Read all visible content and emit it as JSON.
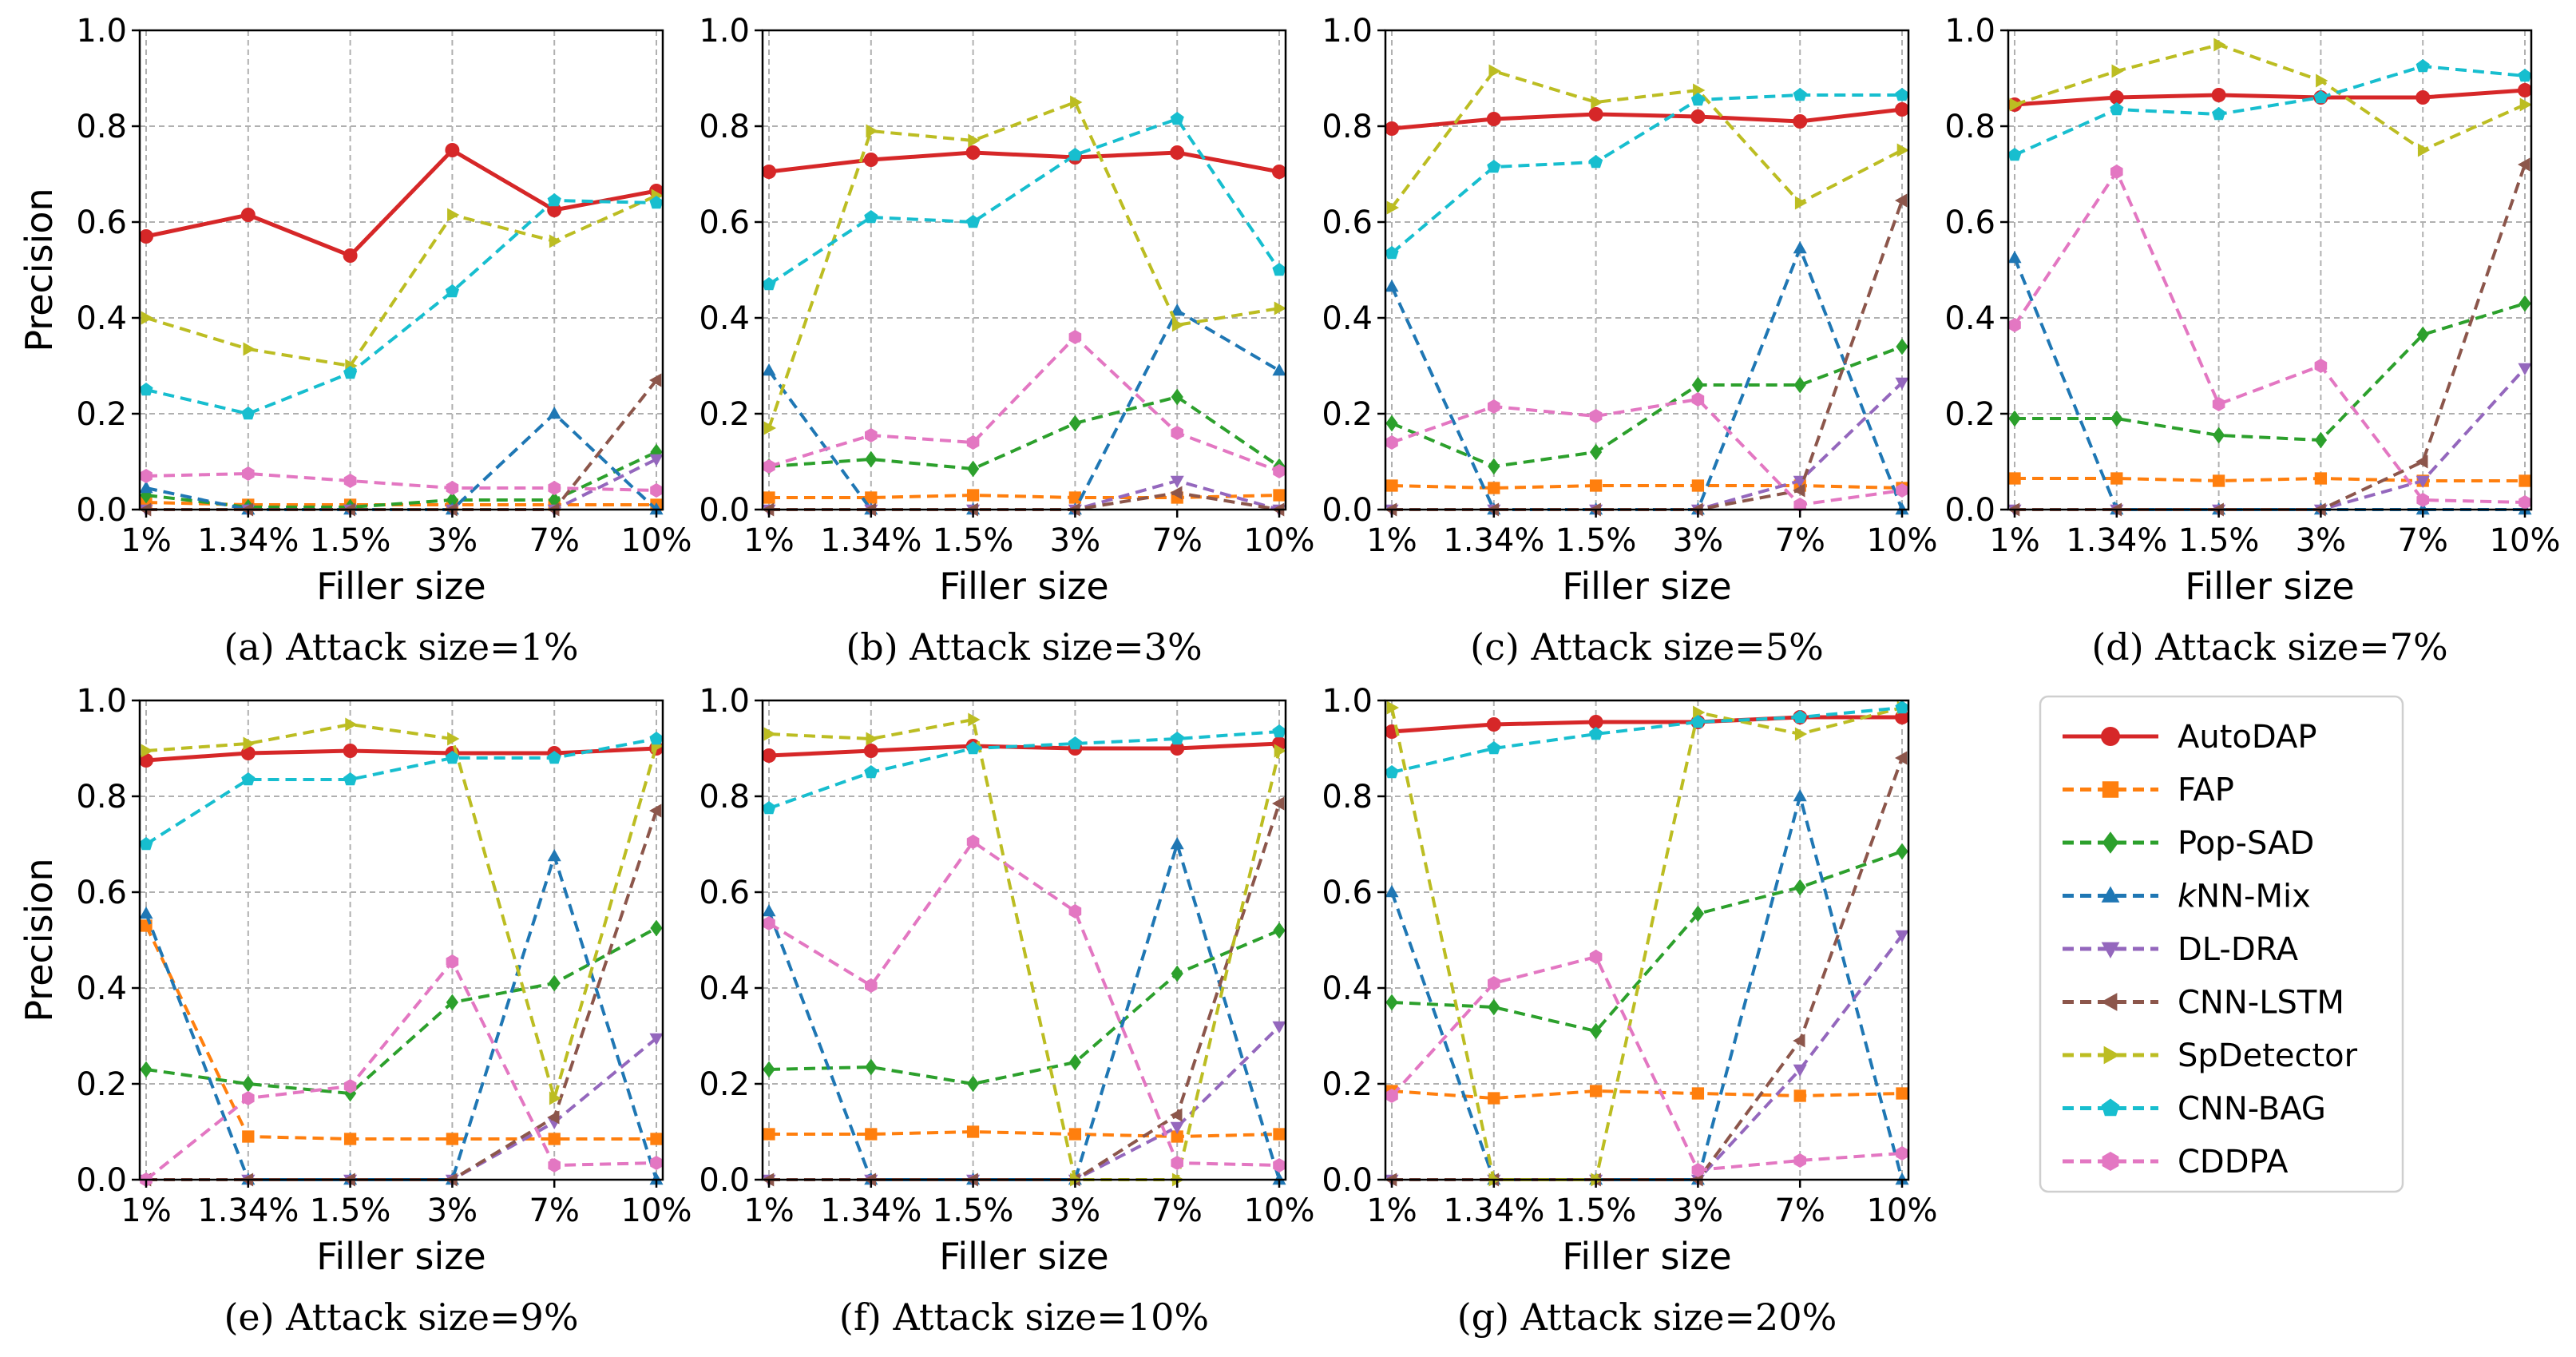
{
  "chart_data": {
    "type": "line",
    "categories": [
      "1%",
      "1.34%",
      "1.5%",
      "3%",
      "7%",
      "10%"
    ],
    "xlabel": "Filler size",
    "ylabel": "Precision",
    "ylim": [
      0,
      1.0
    ],
    "yticks": [
      "0.0",
      "0.2",
      "0.4",
      "0.6",
      "0.8",
      "1.0"
    ],
    "grid": true,
    "legend_placement": "bottom-right",
    "series_meta": [
      {
        "name": "AutoDAP",
        "color": "#d62728",
        "marker": "circle",
        "solid": true
      },
      {
        "name": "FAP",
        "color": "#ff7f0e",
        "marker": "square",
        "solid": false
      },
      {
        "name": "Pop-SAD",
        "color": "#2ca02c",
        "marker": "diamond",
        "solid": false
      },
      {
        "name": "kNN-Mix",
        "color": "#1f77b4",
        "marker": "triangle-up",
        "solid": false
      },
      {
        "name": "DL-DRA",
        "color": "#9467bd",
        "marker": "triangle-down",
        "solid": false
      },
      {
        "name": "CNN-LSTM",
        "color": "#8c564b",
        "marker": "triangle-left",
        "solid": false
      },
      {
        "name": "SpDetector",
        "color": "#bcbd22",
        "marker": "triangle-right",
        "solid": false
      },
      {
        "name": "CNN-BAG",
        "color": "#17becf",
        "marker": "pentagon",
        "solid": false
      },
      {
        "name": "CDDPA",
        "color": "#e377c2",
        "marker": "hexagon",
        "solid": false
      }
    ],
    "panels": [
      {
        "caption": "(a) Attack size=1%",
        "series": [
          {
            "name": "AutoDAP",
            "values": [
              0.57,
              0.615,
              0.53,
              0.75,
              0.625,
              0.665
            ]
          },
          {
            "name": "FAP",
            "values": [
              0.015,
              0.01,
              0.01,
              0.01,
              0.01,
              0.01
            ]
          },
          {
            "name": "Pop-SAD",
            "values": [
              0.03,
              0.005,
              0.005,
              0.02,
              0.02,
              0.12
            ]
          },
          {
            "name": "kNN-Mix",
            "values": [
              0.045,
              0.0,
              0.0,
              0.0,
              0.2,
              0.0
            ]
          },
          {
            "name": "DL-DRA",
            "values": [
              0.0,
              0.0,
              0.0,
              0.0,
              0.0,
              0.105
            ]
          },
          {
            "name": "CNN-LSTM",
            "values": [
              0.0,
              0.0,
              0.0,
              0.0,
              0.0,
              0.27
            ]
          },
          {
            "name": "SpDetector",
            "values": [
              0.4,
              0.335,
              0.3,
              0.615,
              0.56,
              0.655
            ]
          },
          {
            "name": "CNN-BAG",
            "values": [
              0.25,
              0.2,
              0.285,
              0.455,
              0.645,
              0.64
            ]
          },
          {
            "name": "CDDPA",
            "values": [
              0.07,
              0.075,
              0.06,
              0.045,
              0.045,
              0.04
            ]
          }
        ]
      },
      {
        "caption": "(b) Attack size=3%",
        "series": [
          {
            "name": "AutoDAP",
            "values": [
              0.705,
              0.73,
              0.745,
              0.735,
              0.745,
              0.705
            ]
          },
          {
            "name": "FAP",
            "values": [
              0.025,
              0.025,
              0.03,
              0.025,
              0.025,
              0.03
            ]
          },
          {
            "name": "Pop-SAD",
            "values": [
              0.09,
              0.105,
              0.085,
              0.18,
              0.235,
              0.09
            ]
          },
          {
            "name": "kNN-Mix",
            "values": [
              0.29,
              0.0,
              0.0,
              0.0,
              0.415,
              0.29
            ]
          },
          {
            "name": "DL-DRA",
            "values": [
              0.0,
              0.0,
              0.0,
              0.0,
              0.06,
              0.0
            ]
          },
          {
            "name": "CNN-LSTM",
            "values": [
              0.0,
              0.0,
              0.0,
              0.0,
              0.035,
              0.0
            ]
          },
          {
            "name": "SpDetector",
            "values": [
              0.17,
              0.79,
              0.77,
              0.85,
              0.385,
              0.42
            ]
          },
          {
            "name": "CNN-BAG",
            "values": [
              0.47,
              0.61,
              0.6,
              0.74,
              0.815,
              0.5
            ]
          },
          {
            "name": "CDDPA",
            "values": [
              0.09,
              0.155,
              0.14,
              0.36,
              0.16,
              0.08
            ]
          }
        ]
      },
      {
        "caption": "(c) Attack size=5%",
        "series": [
          {
            "name": "AutoDAP",
            "values": [
              0.795,
              0.815,
              0.825,
              0.82,
              0.81,
              0.835
            ]
          },
          {
            "name": "FAP",
            "values": [
              0.05,
              0.045,
              0.05,
              0.05,
              0.05,
              0.045
            ]
          },
          {
            "name": "Pop-SAD",
            "values": [
              0.18,
              0.09,
              0.12,
              0.26,
              0.26,
              0.34
            ]
          },
          {
            "name": "kNN-Mix",
            "values": [
              0.465,
              0.0,
              0.0,
              0.0,
              0.545,
              0.0
            ]
          },
          {
            "name": "DL-DRA",
            "values": [
              0.0,
              0.0,
              0.0,
              0.0,
              0.06,
              0.265
            ]
          },
          {
            "name": "CNN-LSTM",
            "values": [
              0.0,
              0.0,
              0.0,
              0.0,
              0.04,
              0.645
            ]
          },
          {
            "name": "SpDetector",
            "values": [
              0.63,
              0.915,
              0.85,
              0.875,
              0.64,
              0.75
            ]
          },
          {
            "name": "CNN-BAG",
            "values": [
              0.535,
              0.715,
              0.725,
              0.855,
              0.865,
              0.865
            ]
          },
          {
            "name": "CDDPA",
            "values": [
              0.14,
              0.215,
              0.195,
              0.23,
              0.01,
              0.04
            ]
          }
        ]
      },
      {
        "caption": "(d) Attack size=7%",
        "series": [
          {
            "name": "AutoDAP",
            "values": [
              0.845,
              0.86,
              0.865,
              0.86,
              0.86,
              0.875
            ]
          },
          {
            "name": "FAP",
            "values": [
              0.065,
              0.065,
              0.06,
              0.065,
              0.06,
              0.06
            ]
          },
          {
            "name": "Pop-SAD",
            "values": [
              0.19,
              0.19,
              0.155,
              0.145,
              0.365,
              0.43
            ]
          },
          {
            "name": "kNN-Mix",
            "values": [
              0.525,
              0.0,
              0.0,
              0.0,
              0.0,
              0.0
            ]
          },
          {
            "name": "DL-DRA",
            "values": [
              0.0,
              0.0,
              0.0,
              0.0,
              0.06,
              0.295
            ]
          },
          {
            "name": "CNN-LSTM",
            "values": [
              0.0,
              0.0,
              0.0,
              0.0,
              0.1,
              0.72
            ]
          },
          {
            "name": "SpDetector",
            "values": [
              0.845,
              0.915,
              0.97,
              0.895,
              0.75,
              0.845
            ]
          },
          {
            "name": "CNN-BAG",
            "values": [
              0.74,
              0.835,
              0.825,
              0.86,
              0.925,
              0.905
            ]
          },
          {
            "name": "CDDPA",
            "values": [
              0.385,
              0.705,
              0.22,
              0.3,
              0.02,
              0.015
            ]
          }
        ]
      },
      {
        "caption": "(e) Attack size=9%",
        "series": [
          {
            "name": "AutoDAP",
            "values": [
              0.875,
              0.89,
              0.895,
              0.89,
              0.89,
              0.9
            ]
          },
          {
            "name": "FAP",
            "values": [
              0.53,
              0.09,
              0.085,
              0.085,
              0.085,
              0.085
            ]
          },
          {
            "name": "Pop-SAD",
            "values": [
              0.23,
              0.2,
              0.18,
              0.37,
              0.41,
              0.525
            ]
          },
          {
            "name": "kNN-Mix",
            "values": [
              0.555,
              0.0,
              0.0,
              0.0,
              0.675,
              0.0
            ]
          },
          {
            "name": "DL-DRA",
            "values": [
              0.0,
              0.0,
              0.0,
              0.0,
              0.12,
              0.295
            ]
          },
          {
            "name": "CNN-LSTM",
            "values": [
              0.0,
              0.0,
              0.0,
              0.0,
              0.13,
              0.77
            ]
          },
          {
            "name": "SpDetector",
            "values": [
              0.895,
              0.91,
              0.95,
              0.92,
              0.17,
              0.905
            ]
          },
          {
            "name": "CNN-BAG",
            "values": [
              0.7,
              0.835,
              0.835,
              0.88,
              0.88,
              0.92
            ]
          },
          {
            "name": "CDDPA",
            "values": [
              0.0,
              0.17,
              0.195,
              0.455,
              0.03,
              0.035
            ]
          }
        ]
      },
      {
        "caption": "(f) Attack size=10%",
        "series": [
          {
            "name": "AutoDAP",
            "values": [
              0.885,
              0.895,
              0.905,
              0.9,
              0.9,
              0.91
            ]
          },
          {
            "name": "FAP",
            "values": [
              0.095,
              0.095,
              0.1,
              0.095,
              0.09,
              0.095
            ]
          },
          {
            "name": "Pop-SAD",
            "values": [
              0.23,
              0.235,
              0.2,
              0.245,
              0.43,
              0.52
            ]
          },
          {
            "name": "kNN-Mix",
            "values": [
              0.56,
              0.0,
              0.0,
              0.0,
              0.7,
              0.0
            ]
          },
          {
            "name": "DL-DRA",
            "values": [
              0.0,
              0.0,
              0.0,
              0.0,
              0.11,
              0.32
            ]
          },
          {
            "name": "CNN-LSTM",
            "values": [
              0.0,
              0.0,
              0.0,
              0.0,
              0.135,
              0.785
            ]
          },
          {
            "name": "SpDetector",
            "values": [
              0.93,
              0.92,
              0.96,
              0.0,
              0.0,
              0.895
            ]
          },
          {
            "name": "CNN-BAG",
            "values": [
              0.775,
              0.85,
              0.9,
              0.91,
              0.92,
              0.935
            ]
          },
          {
            "name": "CDDPA",
            "values": [
              0.535,
              0.405,
              0.705,
              0.56,
              0.035,
              0.03
            ]
          }
        ]
      },
      {
        "caption": "(g) Attack size=20%",
        "series": [
          {
            "name": "AutoDAP",
            "values": [
              0.935,
              0.95,
              0.955,
              0.955,
              0.965,
              0.965
            ]
          },
          {
            "name": "FAP",
            "values": [
              0.185,
              0.17,
              0.185,
              0.18,
              0.175,
              0.18
            ]
          },
          {
            "name": "Pop-SAD",
            "values": [
              0.37,
              0.36,
              0.31,
              0.555,
              0.61,
              0.685
            ]
          },
          {
            "name": "kNN-Mix",
            "values": [
              0.6,
              0.0,
              0.0,
              0.0,
              0.8,
              0.0
            ]
          },
          {
            "name": "DL-DRA",
            "values": [
              0.0,
              0.0,
              0.0,
              0.0,
              0.23,
              0.51
            ]
          },
          {
            "name": "CNN-LSTM",
            "values": [
              0.0,
              0.0,
              0.0,
              0.0,
              0.29,
              0.88
            ]
          },
          {
            "name": "SpDetector",
            "values": [
              0.985,
              0.0,
              0.0,
              0.975,
              0.93,
              0.985
            ]
          },
          {
            "name": "CNN-BAG",
            "values": [
              0.85,
              0.9,
              0.93,
              0.955,
              0.965,
              0.985
            ]
          },
          {
            "name": "CDDPA",
            "values": [
              0.175,
              0.41,
              0.465,
              0.02,
              0.04,
              0.055
            ]
          }
        ]
      }
    ]
  }
}
